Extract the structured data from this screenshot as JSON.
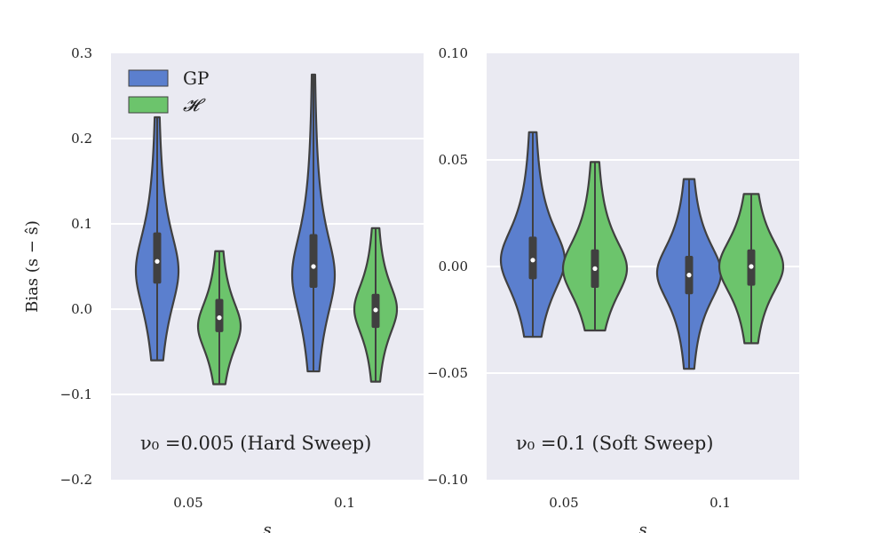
{
  "ylabel": "Bias (s − ŝ)",
  "xlabel": "s",
  "colors": {
    "gp": "#5b7fce",
    "h": "#6cc46c",
    "panel_bg": "#eaeaf2",
    "grid": "#ffffff",
    "edge": "#404040"
  },
  "legend": [
    {
      "label": "GP",
      "color": "#5b7fce"
    },
    {
      "label": "𝓗",
      "color": "#6cc46c"
    }
  ],
  "chart_data": [
    {
      "type": "violin",
      "annotation": "ν₀ =0.005 (Hard Sweep)",
      "ylim": [
        -0.2,
        0.3
      ],
      "yticks": [
        "−0.2",
        "−0.1",
        "0.0",
        "0.1",
        "0.2",
        "0.3"
      ],
      "categories": [
        "0.05",
        "0.1"
      ],
      "series": [
        {
          "name": "GP",
          "groups": [
            {
              "category": "0.05",
              "min": -0.06,
              "max": 0.225,
              "q1": 0.03,
              "median": 0.056,
              "q3": 0.09,
              "mode": 0.045
            },
            {
              "category": "0.1",
              "min": -0.073,
              "max": 0.275,
              "q1": 0.025,
              "median": 0.05,
              "q3": 0.088,
              "mode": 0.04
            }
          ]
        },
        {
          "name": "𝓗",
          "groups": [
            {
              "category": "0.05",
              "min": -0.088,
              "max": 0.068,
              "q1": -0.027,
              "median": -0.01,
              "q3": 0.012,
              "mode": -0.02
            },
            {
              "category": "0.1",
              "min": -0.085,
              "max": 0.095,
              "q1": -0.022,
              "median": -0.001,
              "q3": 0.018,
              "mode": 0.0
            }
          ]
        }
      ]
    },
    {
      "type": "violin",
      "annotation": "ν₀ =0.1 (Soft Sweep)",
      "ylim": [
        -0.1,
        0.1
      ],
      "yticks": [
        "−0.10",
        "−0.05",
        "0.00",
        "0.05",
        "0.10"
      ],
      "categories": [
        "0.05",
        "0.1"
      ],
      "series": [
        {
          "name": "GP",
          "groups": [
            {
              "category": "0.05",
              "min": -0.033,
              "max": 0.063,
              "q1": -0.006,
              "median": 0.003,
              "q3": 0.014,
              "mode": 0.003
            },
            {
              "category": "0.1",
              "min": -0.048,
              "max": 0.041,
              "q1": -0.013,
              "median": -0.004,
              "q3": 0.005,
              "mode": -0.003
            }
          ]
        },
        {
          "name": "𝓗",
          "groups": [
            {
              "category": "0.05",
              "min": -0.03,
              "max": 0.049,
              "q1": -0.01,
              "median": -0.001,
              "q3": 0.008,
              "mode": -0.001
            },
            {
              "category": "0.1",
              "min": -0.036,
              "max": 0.034,
              "q1": -0.009,
              "median": 0.0,
              "q3": 0.008,
              "mode": 0.0
            }
          ]
        }
      ]
    }
  ]
}
